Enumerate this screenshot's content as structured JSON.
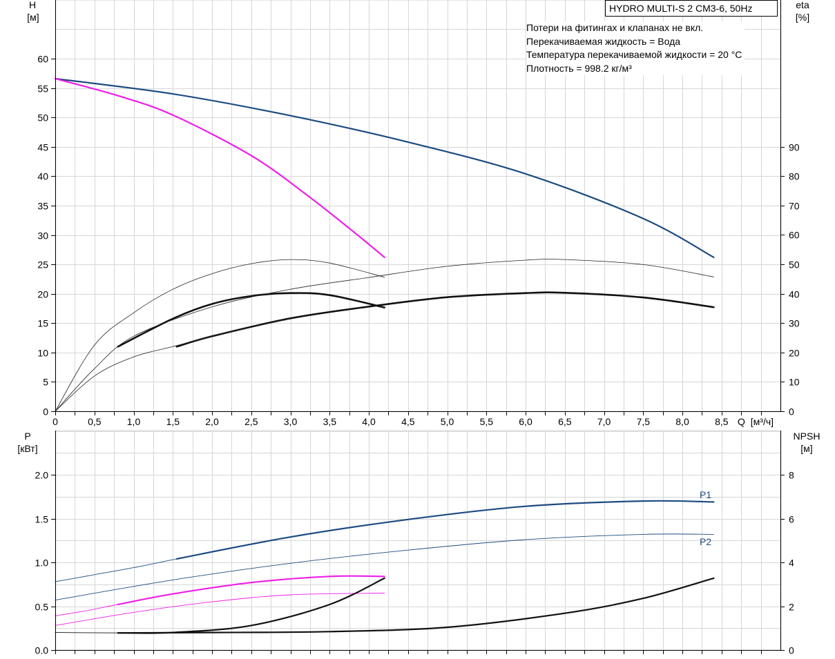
{
  "chart_data": [
    {
      "type": "line",
      "title": "HYDRO MULTI-S 2 CM3-6, 50Hz",
      "notes": [
        "Потери на фитингах и клапанах не вкл.",
        "Перекачиваемая жидкость = Вода",
        "Температура перекачиваемой жидкости = 20 °C",
        "Плотность = 998.2 кг/м³"
      ],
      "xlabel": "Q [м³/ч]",
      "x_label_q": "Q",
      "x_label_unit": "[м³/ч]",
      "x_ticks": [
        "0",
        "0,5",
        "1,0",
        "1,5",
        "2,0",
        "2,5",
        "3,0",
        "3,5",
        "4,0",
        "4,5",
        "5,0",
        "5,5",
        "6,0",
        "6,5",
        "7,0",
        "7,5",
        "8,0",
        "8,5"
      ],
      "xlim": [
        0,
        9.25
      ],
      "ylabel_left": "H",
      "ylabel_left_unit": "[м]",
      "ylim_left": [
        0,
        60
      ],
      "y_ticks_left": [
        "0",
        "5",
        "10",
        "15",
        "20",
        "25",
        "30",
        "35",
        "40",
        "45",
        "50",
        "55",
        "60"
      ],
      "ylabel_right": "eta",
      "ylabel_right_unit": "[%]",
      "ylim_right": [
        0,
        90
      ],
      "y_ticks_right": [
        "0",
        "10",
        "20",
        "30",
        "40",
        "50",
        "60",
        "70",
        "80",
        "90"
      ],
      "grid": true,
      "series": [
        {
          "axis": "left",
          "color": "#1c4a80",
          "width": 2.2,
          "x": [
            0,
            1.5,
            3,
            4.5,
            6,
            7.5,
            8.4
          ],
          "y": [
            56.6,
            54,
            50.3,
            45.8,
            40.4,
            32.8,
            26.2
          ]
        },
        {
          "axis": "left",
          "color": "#ee1ee8",
          "width": 2.2,
          "x": [
            0,
            0.8,
            1.5,
            2.5,
            3.2,
            3.8,
            4.2
          ],
          "y": [
            56.6,
            53.7,
            50.4,
            43.5,
            36.9,
            30.6,
            26.2
          ]
        },
        {
          "axis": "right",
          "color": "#111111",
          "width": 2.6,
          "x": [
            0.8,
            1.5,
            2,
            2.5,
            3,
            3.5,
            4.2
          ],
          "y": [
            22,
            31.5,
            36.5,
            39.2,
            40.2,
            39.5,
            35.3
          ]
        },
        {
          "axis": "right",
          "color": "#111111",
          "width": 2.6,
          "x": [
            1.55,
            2,
            3,
            4,
            5,
            6,
            6.5,
            7.5,
            8.4
          ],
          "y": [
            22,
            25.5,
            31.6,
            35.6,
            38.8,
            40.2,
            40.3,
            38.7,
            35.4
          ]
        },
        {
          "axis": "right",
          "color": "#222222",
          "width": 0.8,
          "x": [
            0,
            0.5,
            1,
            1.5,
            2,
            2.5,
            3,
            3.5,
            4.2
          ],
          "y": [
            0,
            22.5,
            33.5,
            41.5,
            46.8,
            50.2,
            51.6,
            50.4,
            45.6
          ]
        },
        {
          "axis": "right",
          "color": "#222222",
          "width": 0.8,
          "x": [
            0,
            0.5,
            1,
            2,
            3,
            4,
            5,
            6,
            6.5,
            7.5,
            8.4
          ],
          "y": [
            0,
            14.5,
            25.5,
            35.5,
            41.5,
            45.5,
            49.3,
            51.4,
            51.6,
            49.9,
            45.7
          ]
        },
        {
          "axis": "right",
          "color": "#222222",
          "width": 0.8,
          "x": [
            0,
            0.5,
            1,
            1.5,
            2,
            3
          ],
          "y": [
            0,
            12,
            18.5,
            22,
            25.5,
            31.6
          ]
        }
      ]
    },
    {
      "type": "line",
      "xlim": [
        0,
        9.25
      ],
      "ylabel_left": "P",
      "ylabel_left_unit": "[кВт]",
      "ylim_left": [
        0,
        2.5
      ],
      "y_ticks_left": [
        "0.0",
        "0.5",
        "1.0",
        "1.5",
        "2.0"
      ],
      "ylabel_right": "NPSH",
      "ylabel_right_unit": "[м]",
      "ylim_right": [
        0,
        10
      ],
      "y_ticks_right": [
        "0",
        "2",
        "4",
        "6",
        "8"
      ],
      "grid": true,
      "series_labels": [
        "P1",
        "P2"
      ],
      "series": [
        {
          "name": "P1",
          "axis": "left",
          "color": "#1c4a80",
          "width": 2.2,
          "x": [
            1.55,
            3,
            4.5,
            6,
            7.5,
            8.4
          ],
          "y": [
            1.04,
            1.29,
            1.49,
            1.64,
            1.7,
            1.69
          ]
        },
        {
          "axis": "left",
          "color": "#1c4a80",
          "width": 0.9,
          "x": [
            0,
            0.5,
            1,
            1.55
          ],
          "y": [
            0.78,
            0.86,
            0.94,
            1.04
          ]
        },
        {
          "name": "P2",
          "axis": "left",
          "color": "#1c4a80",
          "width": 0.9,
          "x": [
            0,
            1.5,
            3,
            4.5,
            6,
            7.5,
            8.4
          ],
          "y": [
            0.57,
            0.8,
            0.99,
            1.14,
            1.26,
            1.32,
            1.32
          ]
        },
        {
          "axis": "left",
          "color": "#ee1ee8",
          "width": 2.2,
          "x": [
            0.8,
            1.5,
            2.5,
            3.5,
            4.2
          ],
          "y": [
            0.52,
            0.64,
            0.77,
            0.84,
            0.84
          ]
        },
        {
          "axis": "left",
          "color": "#ee1ee8",
          "width": 0.9,
          "x": [
            0,
            0.4,
            0.8
          ],
          "y": [
            0.39,
            0.45,
            0.52
          ]
        },
        {
          "axis": "left",
          "color": "#ee1ee8",
          "width": 0.9,
          "x": [
            0,
            1,
            2,
            3,
            4.2
          ],
          "y": [
            0.28,
            0.43,
            0.55,
            0.63,
            0.65
          ]
        },
        {
          "axis": "left",
          "color": "#111111",
          "width": 0.9,
          "x": [
            0,
            0.8
          ],
          "y": [
            0.2,
            0.195
          ]
        },
        {
          "axis": "left",
          "color": "#111111",
          "width": 2.2,
          "x": [
            0.8,
            1.5,
            2.5,
            3.5,
            4.2
          ],
          "y": [
            0.195,
            0.2,
            0.28,
            0.52,
            0.82
          ]
        },
        {
          "axis": "left",
          "color": "#111111",
          "width": 2.2,
          "x": [
            0.8,
            2,
            3.5,
            5,
            6.5,
            7.5,
            8.4
          ],
          "y": [
            0.195,
            0.2,
            0.21,
            0.26,
            0.42,
            0.59,
            0.82
          ]
        }
      ]
    }
  ]
}
